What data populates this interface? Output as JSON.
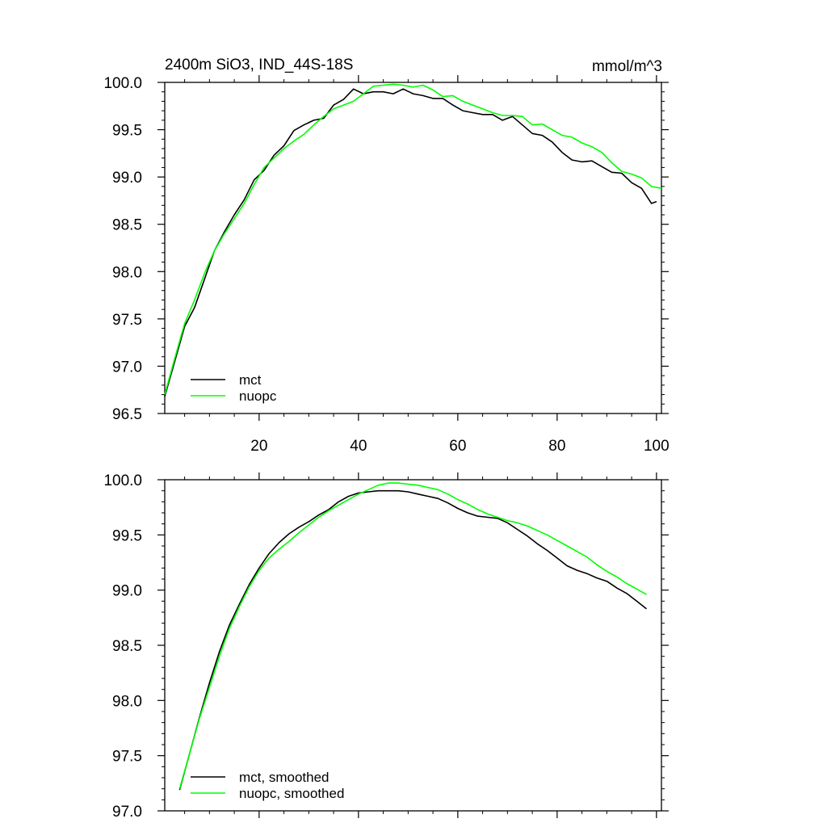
{
  "chart_data": [
    {
      "type": "line",
      "title": "2400m SiO3, IND_44S-18S",
      "units": "mmol/m^3",
      "xlim": [
        1,
        101
      ],
      "ylim": [
        96.5,
        100.0
      ],
      "xticks": [
        20,
        40,
        60,
        80,
        100
      ],
      "yticks": [
        96.5,
        97.0,
        97.5,
        98.0,
        98.5,
        99.0,
        99.5,
        100.0
      ],
      "xtick_labels": [
        "20",
        "40",
        "60",
        "80",
        "100"
      ],
      "ytick_labels": [
        "96.5",
        "97.0",
        "97.5",
        "98.0",
        "98.5",
        "99.0",
        "99.5",
        "100.0"
      ],
      "legend_placement": "bottom-left",
      "series": [
        {
          "name": "mct",
          "color": "#000000",
          "x": [
            1,
            3,
            5,
            7,
            9,
            11,
            13,
            15,
            17,
            19,
            21,
            23,
            25,
            27,
            29,
            31,
            33,
            35,
            37,
            39,
            41,
            43,
            45,
            47,
            49,
            51,
            53,
            55,
            57,
            59,
            61,
            63,
            65,
            67,
            69,
            71,
            73,
            75,
            77,
            79,
            81,
            83,
            85,
            87,
            89,
            91,
            93,
            95,
            97,
            99,
            100
          ],
          "values": [
            96.68,
            97.05,
            97.42,
            97.62,
            97.92,
            98.22,
            98.42,
            98.6,
            98.76,
            98.97,
            99.07,
            99.23,
            99.33,
            99.49,
            99.55,
            99.6,
            99.62,
            99.76,
            99.82,
            99.93,
            99.88,
            99.9,
            99.9,
            99.88,
            99.93,
            99.88,
            99.86,
            99.83,
            99.83,
            99.76,
            99.7,
            99.68,
            99.66,
            99.66,
            99.6,
            99.64,
            99.55,
            99.46,
            99.44,
            99.37,
            99.26,
            99.18,
            99.16,
            99.17,
            99.11,
            99.05,
            99.04,
            98.94,
            98.88,
            98.72,
            98.74
          ]
        },
        {
          "name": "nuopc",
          "color": "#00ff00",
          "x": [
            1,
            3,
            5,
            7,
            9,
            11,
            13,
            15,
            17,
            19,
            21,
            23,
            25,
            27,
            29,
            31,
            33,
            35,
            37,
            39,
            41,
            43,
            45,
            47,
            49,
            51,
            53,
            55,
            57,
            59,
            61,
            63,
            65,
            67,
            69,
            71,
            73,
            75,
            77,
            79,
            81,
            83,
            85,
            87,
            89,
            91,
            93,
            95,
            97,
            99,
            101
          ],
          "values": [
            96.7,
            97.08,
            97.45,
            97.7,
            97.98,
            98.22,
            98.4,
            98.56,
            98.72,
            98.92,
            99.1,
            99.2,
            99.3,
            99.38,
            99.45,
            99.55,
            99.64,
            99.72,
            99.76,
            99.8,
            99.88,
            99.96,
            99.97,
            99.98,
            99.97,
            99.95,
            99.97,
            99.92,
            99.85,
            99.86,
            99.8,
            99.76,
            99.72,
            99.68,
            99.65,
            99.65,
            99.64,
            99.55,
            99.56,
            99.5,
            99.44,
            99.42,
            99.36,
            99.32,
            99.26,
            99.15,
            99.06,
            99.03,
            98.99,
            98.9,
            98.88
          ]
        }
      ]
    },
    {
      "type": "line",
      "xlim": [
        1,
        101
      ],
      "ylim": [
        97.0,
        100.0
      ],
      "xticks": [
        20,
        40,
        60,
        80,
        100
      ],
      "yticks": [
        97.0,
        97.5,
        98.0,
        98.5,
        99.0,
        99.5,
        100.0
      ],
      "ytick_labels": [
        "97.0",
        "97.5",
        "98.0",
        "98.5",
        "99.0",
        "99.5",
        "100.0"
      ],
      "legend_placement": "bottom-left",
      "series": [
        {
          "name": "mct, smoothed",
          "color": "#000000",
          "x": [
            4,
            6,
            8,
            10,
            12,
            14,
            16,
            18,
            20,
            22,
            24,
            26,
            28,
            30,
            32,
            34,
            36,
            38,
            40,
            42,
            44,
            46,
            48,
            50,
            52,
            54,
            56,
            58,
            60,
            62,
            64,
            66,
            68,
            70,
            72,
            74,
            76,
            78,
            80,
            82,
            84,
            86,
            88,
            90,
            92,
            94,
            96,
            98
          ],
          "values": [
            97.19,
            97.52,
            97.85,
            98.16,
            98.44,
            98.68,
            98.87,
            99.05,
            99.2,
            99.33,
            99.43,
            99.51,
            99.57,
            99.62,
            99.68,
            99.73,
            99.8,
            99.85,
            99.88,
            99.89,
            99.9,
            99.9,
            99.9,
            99.89,
            99.87,
            99.85,
            99.83,
            99.79,
            99.74,
            99.7,
            99.67,
            99.66,
            99.65,
            99.61,
            99.55,
            99.49,
            99.42,
            99.36,
            99.29,
            99.22,
            99.18,
            99.15,
            99.11,
            99.08,
            99.02,
            98.97,
            98.9,
            98.83
          ]
        },
        {
          "name": "nuopc, smoothed",
          "color": "#00ff00",
          "x": [
            4,
            6,
            8,
            10,
            12,
            14,
            16,
            18,
            20,
            22,
            24,
            26,
            28,
            30,
            32,
            34,
            36,
            38,
            40,
            42,
            44,
            46,
            48,
            50,
            52,
            54,
            56,
            58,
            60,
            62,
            64,
            66,
            68,
            70,
            72,
            74,
            76,
            78,
            80,
            82,
            84,
            86,
            88,
            90,
            92,
            94,
            96,
            98
          ],
          "values": [
            97.2,
            97.52,
            97.84,
            98.12,
            98.4,
            98.65,
            98.85,
            99.03,
            99.18,
            99.29,
            99.37,
            99.44,
            99.52,
            99.59,
            99.66,
            99.72,
            99.77,
            99.82,
            99.87,
            99.91,
            99.95,
            99.97,
            99.97,
            99.96,
            99.95,
            99.93,
            99.91,
            99.87,
            99.82,
            99.78,
            99.73,
            99.69,
            99.66,
            99.63,
            99.61,
            99.58,
            99.54,
            99.5,
            99.45,
            99.4,
            99.35,
            99.3,
            99.23,
            99.17,
            99.12,
            99.06,
            99.01,
            98.96
          ]
        }
      ]
    }
  ]
}
